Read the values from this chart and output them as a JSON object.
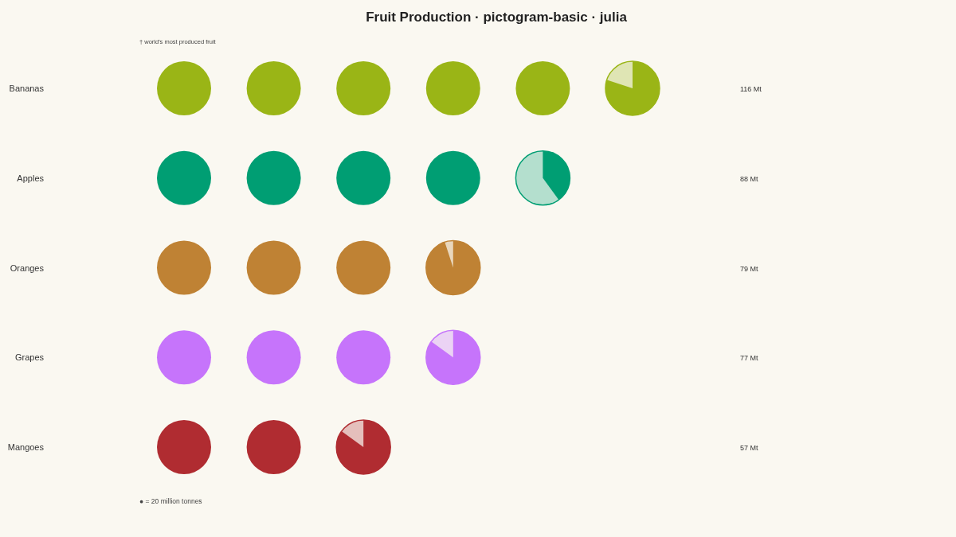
{
  "chart_data": {
    "type": "other",
    "title": "Fruit Production · pictogram-basic · julia",
    "categories": [
      "Bananas",
      "Apples",
      "Oranges",
      "Grapes",
      "Mangoes"
    ],
    "values": [
      116,
      88,
      79,
      77,
      57
    ],
    "value_labels": [
      "116 Mt",
      "88 Mt",
      "79 Mt",
      "77 Mt",
      "57 Mt"
    ],
    "colors": [
      "#9ab516",
      "#009e73",
      "#bf8234",
      "#c674fb",
      "#b02c31"
    ],
    "annotations": [
      "† world's most produced fruit",
      "● = 20 million tonnes"
    ]
  }
}
